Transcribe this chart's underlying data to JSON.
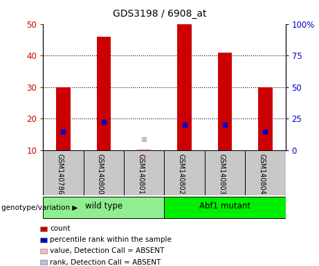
{
  "title": "GDS3198 / 6908_at",
  "samples": [
    "GSM140786",
    "GSM140800",
    "GSM140801",
    "GSM140802",
    "GSM140803",
    "GSM140804"
  ],
  "groups": [
    {
      "name": "wild type",
      "indices": [
        0,
        1,
        2
      ],
      "color": "#90EE90"
    },
    {
      "name": "Abf1 mutant",
      "indices": [
        3,
        4,
        5
      ],
      "color": "#00EE00"
    }
  ],
  "count_values": [
    30,
    46,
    null,
    50,
    41,
    30
  ],
  "percentile_values": [
    16,
    19,
    null,
    18,
    18,
    16
  ],
  "absent_value": 10.5,
  "absent_rank": 13.5,
  "ylim_left": [
    10,
    50
  ],
  "ylim_right": [
    0,
    100
  ],
  "yticks_left": [
    10,
    20,
    30,
    40,
    50
  ],
  "yticks_right": [
    0,
    25,
    50,
    75,
    100
  ],
  "ytick_labels_right": [
    "0",
    "25",
    "50",
    "75",
    "100%"
  ],
  "bar_color": "#CC0000",
  "percentile_color": "#0000CC",
  "absent_val_color": "#FFB6C1",
  "absent_rank_color": "#B0C4DE",
  "grid_color": "black",
  "label_color_left": "#CC0000",
  "label_color_right": "#0000CC",
  "bar_width": 0.35,
  "marker_size": 5,
  "sample_box_color": "#C8C8C8",
  "legend_items": [
    {
      "label": "count",
      "color": "#CC0000"
    },
    {
      "label": "percentile rank within the sample",
      "color": "#0000CC"
    },
    {
      "label": "value, Detection Call = ABSENT",
      "color": "#FFB6C1"
    },
    {
      "label": "rank, Detection Call = ABSENT",
      "color": "#B0C4DE"
    }
  ]
}
